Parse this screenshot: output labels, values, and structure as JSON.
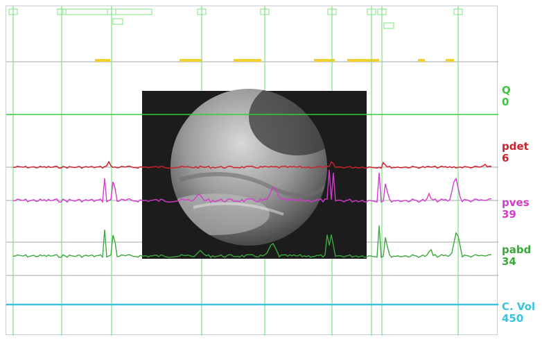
{
  "channels": [
    {
      "id": "Q",
      "name": "Q",
      "value": "0",
      "color": "#39c83a"
    },
    {
      "id": "pdet",
      "name": "pdet",
      "value": "6",
      "color": "#d0202a"
    },
    {
      "id": "pves",
      "name": "pves",
      "value": "39",
      "color": "#d43ad0"
    },
    {
      "id": "pabd",
      "name": "pabd",
      "value": "34",
      "color": "#3aa83c"
    },
    {
      "id": "cvol",
      "name": "C. Vol",
      "value": "450",
      "color": "#38c3e0"
    }
  ],
  "event_markers": [
    {
      "id": "m1",
      "tag": ""
    },
    {
      "id": "m2",
      "tag": ""
    },
    {
      "id": "m3",
      "tag": ""
    },
    {
      "id": "m4",
      "tag": ""
    },
    {
      "id": "m5",
      "tag": ""
    },
    {
      "id": "m6",
      "tag": ""
    },
    {
      "id": "m7",
      "tag": ""
    },
    {
      "id": "m8",
      "tag": ""
    },
    {
      "id": "m9",
      "tag": ""
    },
    {
      "id": "m10",
      "tag": ""
    }
  ],
  "colors": {
    "q_trace": "#39c83a",
    "pdet_trace": "#d0202a",
    "pves_trace": "#d43ad0",
    "pabd_trace": "#3aa83c",
    "cvol_trace": "#38c3e0",
    "marker_line": "#7fe07f",
    "event_bar": "#f0d030",
    "baseline": "#a0a4a8",
    "video_background": "#1c1c1c"
  },
  "video_overlay": {
    "label": "",
    "content": "cystoscopy-frame"
  }
}
